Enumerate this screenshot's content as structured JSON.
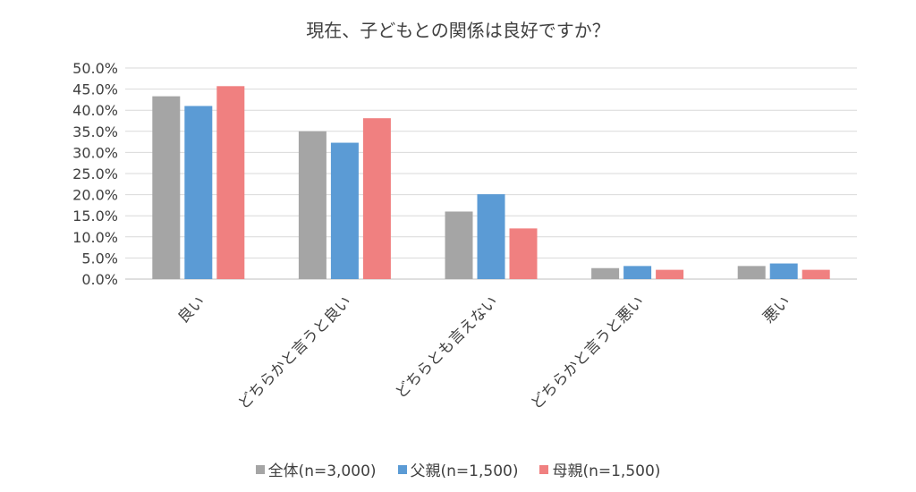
{
  "chart_data": {
    "type": "bar",
    "title": "現在、子どもとの関係は良好ですか？",
    "categories": [
      "良い",
      "どちらかと言うと良い",
      "どちらとも言えない",
      "どちらかと言うと悪い",
      "悪い"
    ],
    "series": [
      {
        "name": "全体(n=3,000)",
        "color": "#a5a5a5",
        "values": [
          43.3,
          35.0,
          16.0,
          2.6,
          3.1
        ]
      },
      {
        "name": "父親(n=1,500)",
        "color": "#5b9bd5",
        "values": [
          41.0,
          32.3,
          20.1,
          3.1,
          3.7
        ]
      },
      {
        "name": "母親(n=1,500)",
        "color": "#f08080",
        "values": [
          45.7,
          38.1,
          12.0,
          2.2,
          2.2
        ]
      }
    ],
    "ylim": [
      0,
      50
    ],
    "yticks": [
      "0.0%",
      "5.0%",
      "10.0%",
      "15.0%",
      "20.0%",
      "25.0%",
      "30.0%",
      "35.0%",
      "40.0%",
      "45.0%",
      "50.0%"
    ],
    "grid": true,
    "legend_position": "bottom"
  }
}
